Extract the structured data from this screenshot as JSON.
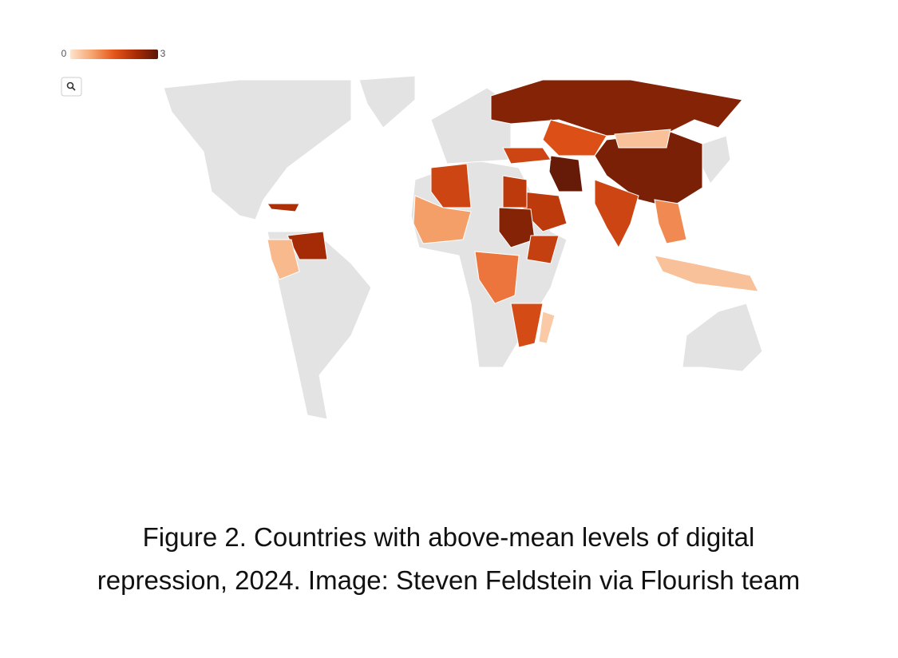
{
  "chart_data": {
    "type": "choropleth",
    "scale_ticks": [
      0,
      3
    ],
    "scale_colors": [
      "#fde3cc",
      "#f6a46e",
      "#e4561b",
      "#a92c06",
      "#5b1808"
    ],
    "values": [
      2.6,
      2.7,
      0.4,
      1.6,
      2.9,
      1.8,
      2.0,
      2.0,
      2.6,
      1.9,
      1.8,
      0.8,
      1.2,
      2.3,
      0.5,
      1.0,
      0.4,
      1.8,
      2.2,
      1.7,
      0.3
    ],
    "caption": "Figure 2. Countries with above-mean levels of digital repression, 2024. Image: Steven Feldstein via Flourish team"
  }
}
